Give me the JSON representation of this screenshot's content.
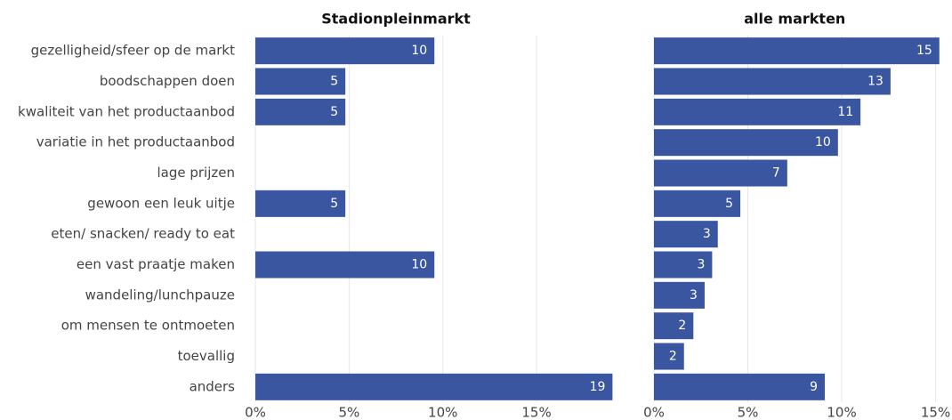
{
  "chart_data": [
    {
      "type": "bar",
      "orientation": "horizontal",
      "title": "Stadionpleinmarkt",
      "categories": [
        "gezelligheid/sfeer op de markt",
        "boodschappen doen",
        "kwaliteit van het productaanbod",
        "variatie in het productaanbod",
        "lage prijzen",
        "gewoon een leuk uitje",
        "eten/ snacken/ ready to eat",
        "een vast praatje maken",
        "wandeling/lunchpauze",
        "om mensen te ontmoeten",
        "toevallig",
        "anders"
      ],
      "values": [
        9.55,
        4.8,
        4.8,
        null,
        null,
        4.8,
        null,
        9.55,
        null,
        null,
        null,
        19.05
      ],
      "value_labels": [
        "10",
        "5",
        "5",
        null,
        null,
        "5",
        null,
        "10",
        null,
        null,
        null,
        "19"
      ],
      "color": "#3a56a0",
      "grid": true,
      "xlim": [
        0,
        19.6
      ],
      "xticks": [
        {
          "value": 0,
          "label": "0%"
        },
        {
          "value": 5,
          "label": "5%"
        },
        {
          "value": 10,
          "label": "10%"
        },
        {
          "value": 15,
          "label": "15%"
        }
      ]
    },
    {
      "type": "bar",
      "orientation": "horizontal",
      "title": "alle markten",
      "values": [
        15.2,
        12.6,
        11.0,
        9.8,
        7.1,
        4.6,
        3.4,
        3.1,
        2.7,
        2.1,
        1.6,
        9.1
      ],
      "value_labels": [
        "15",
        "13",
        "11",
        "10",
        "7",
        "5",
        "3",
        "3",
        "3",
        "2",
        "2",
        "9"
      ],
      "color": "#3a56a0",
      "grid": true,
      "xlim": [
        0,
        15.4
      ],
      "xticks": [
        {
          "value": 0,
          "label": "0%"
        },
        {
          "value": 5,
          "label": "5%"
        },
        {
          "value": 10,
          "label": "10%"
        },
        {
          "value": 15,
          "label": "15%"
        }
      ]
    }
  ]
}
